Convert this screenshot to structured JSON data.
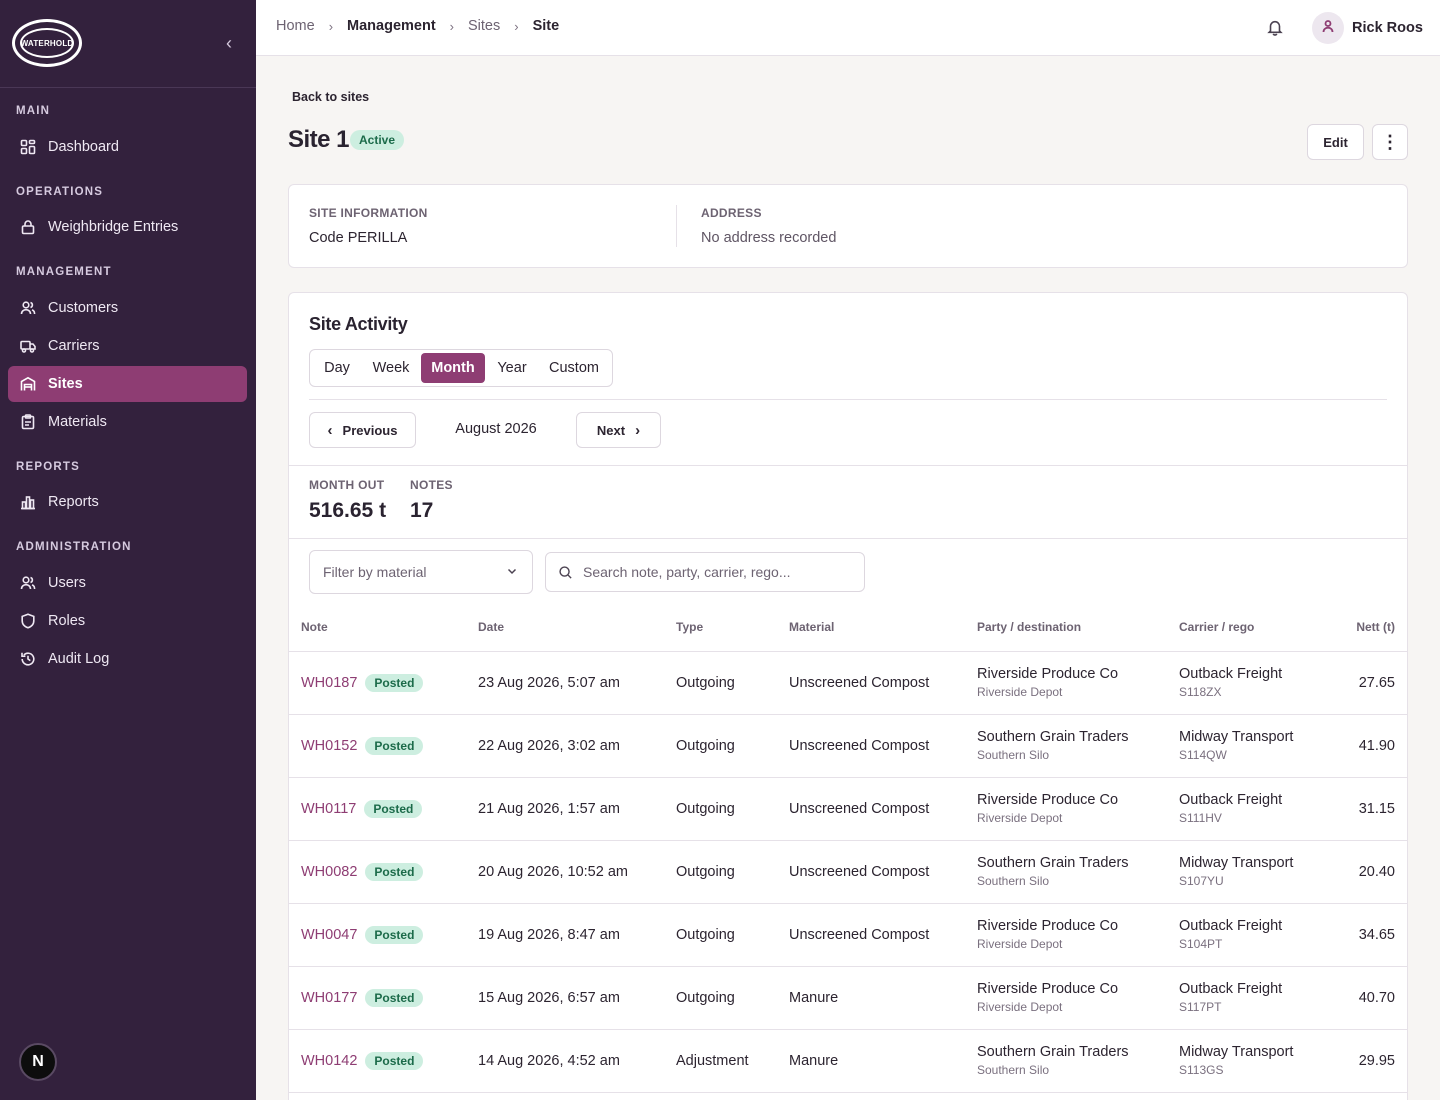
{
  "brand": {
    "logo_text": "WATERHOLD"
  },
  "sidebar": {
    "sections": [
      {
        "title": "MAIN"
      },
      {
        "title": "OPERATIONS"
      },
      {
        "title": "MANAGEMENT"
      },
      {
        "title": "REPORTS"
      },
      {
        "title": "ADMINISTRATION"
      }
    ],
    "items": [
      {
        "label": "Dashboard",
        "icon": "dashboard-icon"
      },
      {
        "label": "Weighbridge Entries",
        "icon": "lock-icon"
      },
      {
        "label": "Customers",
        "icon": "users-icon"
      },
      {
        "label": "Carriers",
        "icon": "truck-icon"
      },
      {
        "label": "Sites",
        "icon": "warehouse-icon",
        "active": true
      },
      {
        "label": "Materials",
        "icon": "clipboard-icon"
      },
      {
        "label": "Reports",
        "icon": "bar-chart-icon"
      },
      {
        "label": "Users",
        "icon": "users-icon"
      },
      {
        "label": "Roles",
        "icon": "shield-icon"
      },
      {
        "label": "Audit Log",
        "icon": "history-icon"
      }
    ],
    "footer_badge": "N"
  },
  "breadcrumb": [
    "Home",
    "Management",
    "Sites",
    "Site"
  ],
  "user": {
    "name": "Rick Roos"
  },
  "page": {
    "back_label": "Back to sites",
    "title": "Site 1",
    "status": "Active",
    "edit_label": "Edit"
  },
  "info": {
    "site_label": "SITE INFORMATION",
    "site_value": "Code PERILLA",
    "address_label": "ADDRESS",
    "address_value": "No address recorded"
  },
  "activity": {
    "title": "Site Activity",
    "periods": [
      "Day",
      "Week",
      "Month",
      "Year",
      "Custom"
    ],
    "selected_period": "Month",
    "prev_label": "Previous",
    "next_label": "Next",
    "current_range": "August 2026",
    "stats": [
      {
        "label": "MONTH OUT",
        "value": "516.65 t"
      },
      {
        "label": "NOTES",
        "value": "17"
      }
    ],
    "filter_placeholder": "Filter by material",
    "search_placeholder": "Search note, party, carrier, rego..."
  },
  "table": {
    "headers": [
      "Note",
      "Date",
      "Type",
      "Material",
      "Party / destination",
      "Carrier / rego",
      "Nett (t)"
    ],
    "rows": [
      {
        "note": "WH0187",
        "status": "Posted",
        "date": "23 Aug 2026, 5:07 am",
        "type": "Outgoing",
        "material": "Unscreened Compost",
        "party": "Riverside Produce Co",
        "destination": "Riverside Depot",
        "carrier": "Outback Freight",
        "rego": "S118ZX",
        "nett": "27.65"
      },
      {
        "note": "WH0152",
        "status": "Posted",
        "date": "22 Aug 2026, 3:02 am",
        "type": "Outgoing",
        "material": "Unscreened Compost",
        "party": "Southern Grain Traders",
        "destination": "Southern Silo",
        "carrier": "Midway Transport",
        "rego": "S114QW",
        "nett": "41.90"
      },
      {
        "note": "WH0117",
        "status": "Posted",
        "date": "21 Aug 2026, 1:57 am",
        "type": "Outgoing",
        "material": "Unscreened Compost",
        "party": "Riverside Produce Co",
        "destination": "Riverside Depot",
        "carrier": "Outback Freight",
        "rego": "S111HV",
        "nett": "31.15"
      },
      {
        "note": "WH0082",
        "status": "Posted",
        "date": "20 Aug 2026, 10:52 am",
        "type": "Outgoing",
        "material": "Unscreened Compost",
        "party": "Southern Grain Traders",
        "destination": "Southern Silo",
        "carrier": "Midway Transport",
        "rego": "S107YU",
        "nett": "20.40"
      },
      {
        "note": "WH0047",
        "status": "Posted",
        "date": "19 Aug 2026, 8:47 am",
        "type": "Outgoing",
        "material": "Unscreened Compost",
        "party": "Riverside Produce Co",
        "destination": "Riverside Depot",
        "carrier": "Outback Freight",
        "rego": "S104PT",
        "nett": "34.65"
      },
      {
        "note": "WH0177",
        "status": "Posted",
        "date": "15 Aug 2026, 6:57 am",
        "type": "Outgoing",
        "material": "Manure",
        "party": "Riverside Produce Co",
        "destination": "Riverside Depot",
        "carrier": "Outback Freight",
        "rego": "S117PT",
        "nett": "40.70"
      },
      {
        "note": "WH0142",
        "status": "Posted",
        "date": "14 Aug 2026, 4:52 am",
        "type": "Adjustment",
        "material": "Manure",
        "party": "Southern Grain Traders",
        "destination": "Southern Silo",
        "carrier": "Midway Transport",
        "rego": "S113GS",
        "nett": "29.95"
      }
    ]
  },
  "colors": {
    "sidebar_bg": "#33213d",
    "accent": "#8e3d73",
    "badge_green_bg": "#cdeee0",
    "badge_green_text": "#1c6b4a"
  }
}
